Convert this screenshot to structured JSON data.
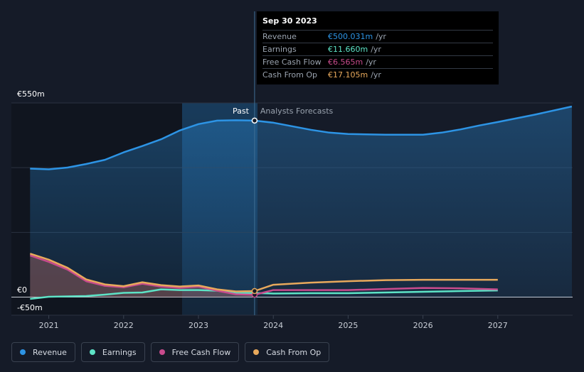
{
  "chart_data": {
    "type": "line",
    "y_labels": {
      "top": "€550m",
      "zero": "€0",
      "bottom": "-€50m"
    },
    "ylim": [
      -50,
      550
    ],
    "x_ticks": [
      "2021",
      "2022",
      "2023",
      "2024",
      "2025",
      "2026",
      "2027"
    ],
    "divider": {
      "past_label": "Past",
      "forecast_label": "Analysts Forecasts",
      "x": 2023.75
    },
    "grid": true,
    "legend_position": "bottom-left",
    "colors": {
      "revenue": "#2d94e5",
      "earnings": "#5de3c6",
      "free_cash_flow": "#c84b8d",
      "cash_from_op": "#e8a95c"
    },
    "series": [
      {
        "key": "revenue",
        "name": "Revenue",
        "color": "#2d94e5",
        "x": [
          2020.75,
          2021.0,
          2021.25,
          2021.5,
          2021.75,
          2022.0,
          2022.25,
          2022.5,
          2022.75,
          2023.0,
          2023.25,
          2023.5,
          2023.75,
          2024.0,
          2024.25,
          2024.5,
          2024.75,
          2025.0,
          2025.5,
          2026.0,
          2026.25,
          2026.5,
          2026.75,
          2027.0,
          2027.5,
          2027.99
        ],
        "values": [
          364,
          362,
          367,
          377,
          389,
          410,
          428,
          447,
          472,
          490,
          500,
          501,
          500,
          494,
          484,
          474,
          466,
          462,
          460,
          460,
          466,
          475,
          486,
          496,
          517,
          540
        ]
      },
      {
        "key": "earnings",
        "name": "Earnings",
        "color": "#5de3c6",
        "x": [
          2020.75,
          2021.0,
          2021.25,
          2021.5,
          2021.75,
          2022.0,
          2022.25,
          2022.5,
          2022.75,
          2023.0,
          2023.25,
          2023.5,
          2023.75,
          2024.0,
          2024.5,
          2025.0,
          2025.5,
          2026.0,
          2026.5,
          2027.0
        ],
        "values": [
          -5,
          1,
          2,
          3,
          7,
          12,
          13,
          22,
          20,
          20,
          18,
          11,
          11.66,
          10,
          11,
          11,
          13,
          15,
          17,
          19
        ]
      },
      {
        "key": "free_cash_flow",
        "name": "Free Cash Flow",
        "color": "#c84b8d",
        "x": [
          2020.75,
          2021.0,
          2021.25,
          2021.5,
          2021.75,
          2022.0,
          2022.25,
          2022.5,
          2022.75,
          2023.0,
          2023.25,
          2023.5,
          2023.75,
          2024.0,
          2024.5,
          2025.0,
          2025.5,
          2026.0,
          2026.5,
          2027.0
        ],
        "values": [
          118,
          100,
          78,
          45,
          32,
          28,
          38,
          30,
          26,
          30,
          18,
          8,
          6.565,
          20,
          20,
          20,
          23,
          26,
          25,
          22
        ]
      },
      {
        "key": "cash_from_op",
        "name": "Cash From Op",
        "color": "#e8a95c",
        "x": [
          2020.75,
          2021.0,
          2021.25,
          2021.5,
          2021.75,
          2022.0,
          2022.25,
          2022.5,
          2022.75,
          2023.0,
          2023.25,
          2023.5,
          2023.75,
          2024.0,
          2024.5,
          2025.0,
          2025.5,
          2026.0,
          2026.5,
          2027.0
        ],
        "values": [
          123,
          106,
          83,
          50,
          36,
          31,
          42,
          34,
          30,
          33,
          22,
          16,
          17.105,
          35,
          41,
          45,
          48,
          49,
          49,
          49
        ]
      }
    ]
  },
  "tooltip": {
    "date": "Sep 30 2023",
    "rows": [
      {
        "label": "Revenue",
        "value": "€500.031m",
        "unit": "/yr",
        "color": "#2d94e5"
      },
      {
        "label": "Earnings",
        "value": "€11.660m",
        "unit": "/yr",
        "color": "#5de3c6"
      },
      {
        "label": "Free Cash Flow",
        "value": "€6.565m",
        "unit": "/yr",
        "color": "#c84b8d"
      },
      {
        "label": "Cash From Op",
        "value": "€17.105m",
        "unit": "/yr",
        "color": "#e8a95c"
      }
    ]
  },
  "legend": [
    {
      "label": "Revenue",
      "color": "#2d94e5"
    },
    {
      "label": "Earnings",
      "color": "#5de3c6"
    },
    {
      "label": "Free Cash Flow",
      "color": "#c84b8d"
    },
    {
      "label": "Cash From Op",
      "color": "#e8a95c"
    }
  ]
}
